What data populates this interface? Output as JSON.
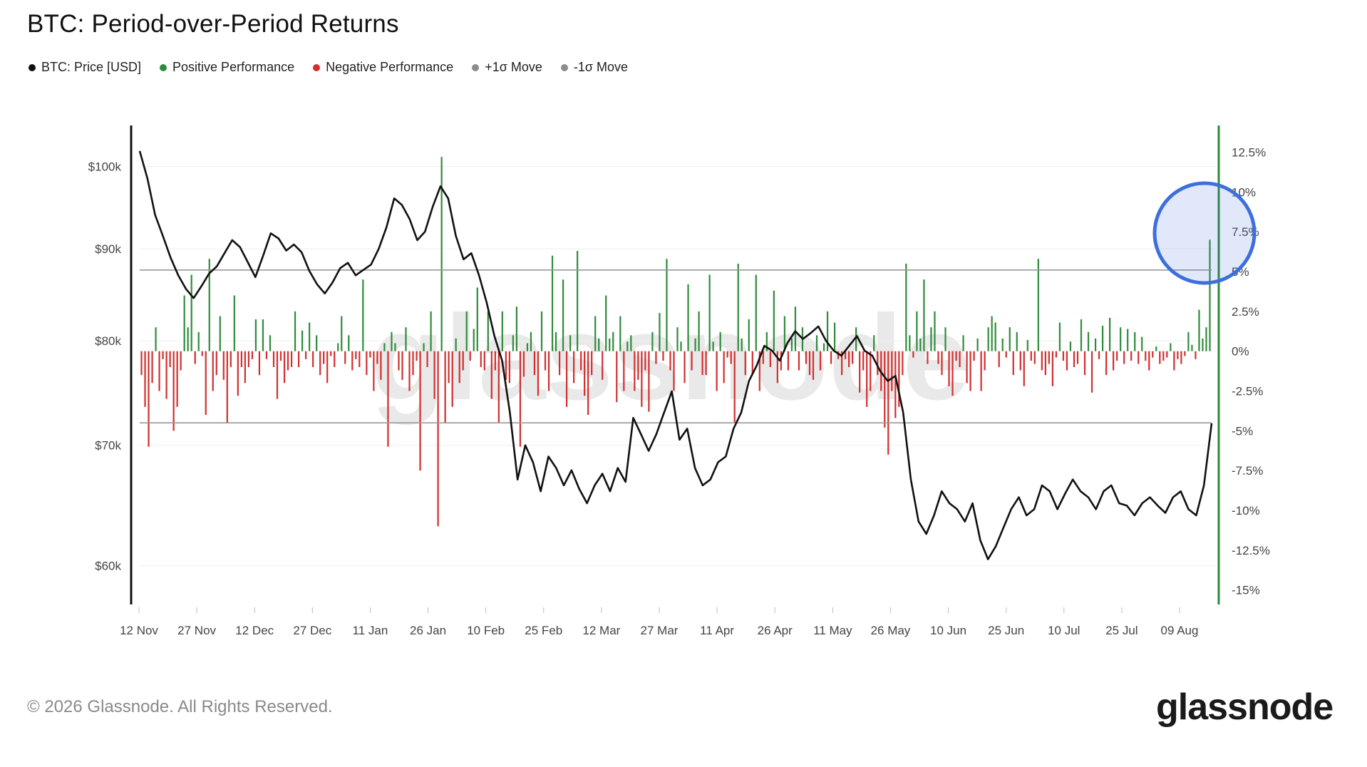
{
  "title": "BTC: Period-over-Period Returns",
  "legend": [
    {
      "label": "BTC: Price [USD]",
      "color": "#111111"
    },
    {
      "label": "Positive Performance",
      "color": "#2e8b3a"
    },
    {
      "label": "Negative Performance",
      "color": "#d22e2e"
    },
    {
      "label": "+1σ Move",
      "color": "#8c8c8c"
    },
    {
      "label": "-1σ Move",
      "color": "#8c8c8c"
    }
  ],
  "footer": "© 2026 Glassnode. All Rights Reserved.",
  "brand": "glassnode",
  "watermark": "glassnode",
  "chart_data": {
    "type": "bar",
    "title": "BTC: Period-over-Period Returns",
    "x_tick_labels": [
      "12 Nov",
      "27 Nov",
      "12 Dec",
      "27 Dec",
      "11 Jan",
      "26 Jan",
      "10 Feb",
      "25 Feb",
      "12 Mar",
      "27 Mar",
      "11 Apr",
      "26 Apr",
      "11 May",
      "26 May",
      "10 Jun",
      "25 Jun",
      "10 Jul",
      "25 Jul",
      "09 Aug"
    ],
    "left_axis": {
      "ticks": [
        60000,
        70000,
        80000,
        90000,
        100000
      ],
      "tick_labels": [
        "$60k",
        "$70k",
        "$80k",
        "$90k",
        "$100k"
      ],
      "scale": "log",
      "range": [
        57000,
        105000
      ]
    },
    "right_axis": {
      "ticks": [
        12.5,
        10,
        7.5,
        5,
        2.5,
        0,
        -2.5,
        -5,
        -7.5,
        -10,
        -12.5,
        -15
      ],
      "tick_labels": [
        "12.5%",
        "10%",
        "7.5%",
        "5%",
        "2.5%",
        "0%",
        "-2.5%",
        "-5%",
        "-7.5%",
        "-10%",
        "-12.5%",
        "-15%"
      ],
      "range": [
        -16,
        14
      ]
    },
    "sigma_bands": {
      "plus_1_sigma": 5.1,
      "minus_1_sigma": -4.5
    },
    "price_series": {
      "name": "BTC: Price [USD]",
      "color": "#111111",
      "x": [
        0,
        2,
        4,
        6,
        8,
        10,
        12,
        14,
        16,
        18,
        20,
        22,
        24,
        26,
        28,
        30,
        32,
        34,
        36,
        38,
        40,
        42,
        44,
        46,
        48,
        50,
        52,
        54,
        56,
        58,
        60,
        62,
        64,
        66,
        68,
        70,
        72,
        74,
        76,
        78,
        80,
        82,
        84,
        86,
        88,
        90,
        92,
        94,
        96,
        98,
        100,
        102,
        104,
        106,
        108,
        110,
        112,
        114,
        116,
        118,
        120,
        122,
        124,
        126,
        128,
        130,
        132,
        134,
        136,
        138,
        140,
        142,
        144,
        146,
        148,
        150,
        152,
        154,
        156,
        158,
        160,
        162,
        164,
        166,
        168,
        170,
        172,
        174,
        176,
        178,
        180,
        182,
        184,
        186,
        188,
        190,
        192,
        194,
        196,
        198,
        200,
        202,
        204,
        206,
        208,
        210,
        212,
        214,
        216,
        218,
        220,
        222,
        224,
        226,
        228,
        230,
        232,
        234,
        236,
        238,
        240,
        242,
        244,
        246,
        248,
        250,
        252,
        254,
        256,
        258,
        260,
        262,
        264,
        266,
        268,
        270,
        272,
        274,
        276,
        278
      ],
      "values": [
        102000,
        98500,
        94000,
        91500,
        89000,
        87000,
        85500,
        84500,
        85800,
        87200,
        88000,
        89500,
        91000,
        90200,
        88500,
        86800,
        89200,
        91800,
        91200,
        89800,
        90500,
        89600,
        87500,
        86000,
        85000,
        86200,
        87800,
        88400,
        87000,
        87600,
        88200,
        90000,
        92500,
        96000,
        95200,
        93500,
        91000,
        92000,
        95000,
        97500,
        96000,
        91500,
        88800,
        89500,
        87000,
        84000,
        80500,
        78000,
        73000,
        67000,
        70000,
        68500,
        66000,
        69000,
        68000,
        66500,
        67800,
        66200,
        65000,
        66500,
        67500,
        66000,
        68000,
        66800,
        72500,
        71000,
        69500,
        71000,
        73000,
        75000,
        70500,
        71500,
        68000,
        66500,
        67000,
        68500,
        69000,
        71500,
        73000,
        76000,
        77500,
        79500,
        79000,
        78000,
        79800,
        81000,
        80200,
        80800,
        81500,
        80000,
        79000,
        78500,
        79500,
        80500,
        79000,
        78500,
        77000,
        76000,
        76500,
        73000,
        67000,
        63500,
        62500,
        64000,
        66000,
        65000,
        64500,
        63500,
        65000,
        62000,
        60500,
        61500,
        63000,
        64500,
        65500,
        64000,
        64500,
        66500,
        66000,
        64500,
        65800,
        67000,
        66000,
        65500,
        64500,
        66000,
        66500,
        65000,
        64800,
        64000,
        65000,
        65500,
        64800,
        64200,
        65500,
        66000,
        64500,
        64000,
        66500,
        72000
      ],
      "x_range": [
        0,
        278
      ]
    },
    "series": [
      {
        "name": "Positive Performance",
        "color": "#2e8b3a"
      },
      {
        "name": "Negative Performance",
        "color": "#d22e2e"
      }
    ],
    "returns_pct": [
      -1.5,
      -3.5,
      -6,
      -2,
      1.5,
      -2.5,
      -0.5,
      -3,
      -1,
      -5,
      -3.5,
      -1.2,
      3.5,
      1.5,
      4.8,
      -0.8,
      1.2,
      -0.3,
      -4,
      5.8,
      -2.5,
      -1.5,
      2.2,
      -1.8,
      -4.5,
      -1,
      3.5,
      -2.8,
      -1,
      -2,
      -1,
      -0.5,
      2,
      -1.5,
      2,
      -0.5,
      1,
      -1,
      -3,
      -0.6,
      -2,
      -1.2,
      -1,
      2.5,
      -1,
      1.3,
      -0.5,
      1.8,
      -1,
      1,
      -1.5,
      -0.8,
      -2,
      -0.3,
      -1,
      0.5,
      2.2,
      -0.8,
      1,
      -1.2,
      -0.5,
      -1,
      4.5,
      -1.5,
      -0.4,
      -2.5,
      -0.8,
      -1.8,
      0.5,
      -6,
      1.2,
      0.5,
      -1.2,
      -1.8,
      1.5,
      -2.5,
      -1.5,
      -0.6,
      -7.5,
      0.5,
      -1,
      2.5,
      -3,
      -11,
      12.2,
      -4.5,
      -2,
      -3.5,
      0.8,
      -2,
      -1.2,
      2.5,
      -0.6,
      1.4,
      4,
      -1,
      -1.2,
      2.5,
      -3,
      -1.2,
      -4.5,
      2.5,
      -1.8,
      -2,
      1,
      2.8,
      -6,
      -1.6,
      0.5,
      1.2,
      -1.5,
      -2.8,
      2.5,
      -1.2,
      -2.5,
      6,
      1.2,
      -1.5,
      4.5,
      -3.5,
      1,
      -2,
      6.3,
      -1.2,
      -2.8,
      -4,
      -1.5,
      2.2,
      0.8,
      -1.8,
      3.5,
      0.8,
      1.2,
      -3.2,
      2.2,
      -2.5,
      0.6,
      1,
      -2.5,
      -1.8,
      -3.5,
      -1.2,
      -3.8,
      1.2,
      -0.8,
      2.4,
      -0.6,
      5.8,
      -1.2,
      -2.5,
      1.5,
      0.6,
      -2,
      4.2,
      -1.2,
      0.8,
      2.5,
      -1.5,
      -1.5,
      4.8,
      0.6,
      -2.5,
      1.2,
      -2,
      -0.4,
      -0.8,
      -4.5,
      5.5,
      0.8,
      -1.5,
      2,
      -1.5,
      4.8,
      -2.5,
      -0.8,
      1.2,
      -1,
      3.8,
      -2,
      -1.2,
      2.2,
      -1.2,
      0.8,
      2.8,
      -1.2,
      1.5,
      -0.8,
      -1.5,
      -1.8,
      1,
      -1.2,
      0.5,
      2.5,
      -0.8,
      1.8,
      -0.5,
      -1.5,
      -0.5,
      -1,
      -0.8,
      1.5,
      -2.6,
      -1.2,
      -3.5,
      -2.5,
      1,
      -1.5,
      -2.5,
      -4.8,
      -6.5,
      -2.5,
      -4.2,
      -3.5,
      -1.5,
      5.5,
      1,
      -0.4,
      2.5,
      0.8,
      4.5,
      -0.8,
      1.5,
      2.5,
      -0.8,
      -1.5,
      1.5,
      -2.2,
      -2.8,
      -0.6,
      -1,
      1,
      -2,
      -2.5,
      -0.6,
      0.8,
      -2.5,
      -1.2,
      1.5,
      2.2,
      1.8,
      -1,
      0.8,
      -0.4,
      1.5,
      -1.5,
      1.2,
      -1.2,
      -2.2,
      0.7,
      -0.6,
      -0.8,
      5.8,
      -1.2,
      -1.5,
      -0.8,
      -2.2,
      -0.4,
      1.8,
      -0.6,
      -1.2,
      0.6,
      -1,
      -0.8,
      2,
      -1.5,
      1.2,
      -2.6,
      0.8,
      -0.5,
      1.6,
      -1.5,
      2.1,
      -1.2,
      -0.6,
      1.5,
      -0.8,
      1.4,
      -0.6,
      1.2,
      -0.8,
      0.9,
      -0.6,
      -1.2,
      -0.4,
      0.3,
      -0.8,
      -0.6,
      -0.4,
      0.5,
      -1.2,
      -0.5,
      -0.8,
      -0.3,
      1.2,
      0.4,
      -0.5,
      2.6,
      0.8,
      1.5,
      7
    ]
  },
  "annotation": {
    "type": "circle",
    "color": "#3d6fdc"
  }
}
